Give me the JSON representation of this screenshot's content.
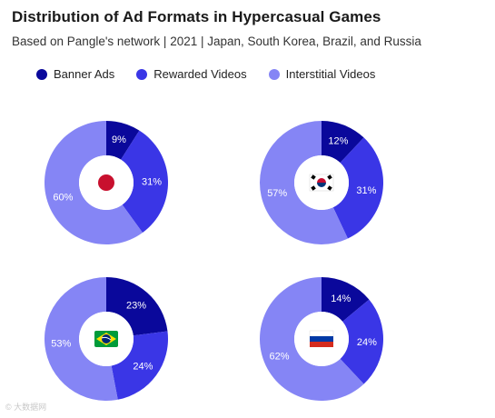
{
  "title": "Distribution of Ad Formats in Hypercasual Games",
  "subtitle": "Based on Pangle's network | 2021 | Japan, South Korea, Brazil, and Russia",
  "watermark": "© 大数据网",
  "colors": {
    "banner": "#0a089b",
    "rewarded": "#3a36e6",
    "interstitial": "#8585f5"
  },
  "legend": [
    {
      "label": "Banner Ads",
      "color": "#0a089b"
    },
    {
      "label": "Rewarded Videos",
      "color": "#3a36e6"
    },
    {
      "label": "Interstitial Videos",
      "color": "#8585f5"
    }
  ],
  "chart_data": [
    {
      "type": "pie",
      "country": "Japan",
      "flag": "japan-flag-icon",
      "categories": [
        "Banner Ads",
        "Rewarded Videos",
        "Interstitial Videos"
      ],
      "values": [
        9,
        31,
        60
      ],
      "labels": [
        "9%",
        "31%",
        "60%"
      ]
    },
    {
      "type": "pie",
      "country": "South Korea",
      "flag": "south-korea-flag-icon",
      "categories": [
        "Banner Ads",
        "Rewarded Videos",
        "Interstitial Videos"
      ],
      "values": [
        12,
        31,
        57
      ],
      "labels": [
        "12%",
        "31%",
        "57%"
      ]
    },
    {
      "type": "pie",
      "country": "Brazil",
      "flag": "brazil-flag-icon",
      "categories": [
        "Banner Ads",
        "Rewarded Videos",
        "Interstitial Videos"
      ],
      "values": [
        23,
        24,
        53
      ],
      "labels": [
        "23%",
        "24%",
        "53%"
      ]
    },
    {
      "type": "pie",
      "country": "Russia",
      "flag": "russia-flag-icon",
      "categories": [
        "Banner Ads",
        "Rewarded Videos",
        "Interstitial Videos"
      ],
      "values": [
        14,
        24,
        62
      ],
      "labels": [
        "14%",
        "24%",
        "62%"
      ]
    }
  ]
}
